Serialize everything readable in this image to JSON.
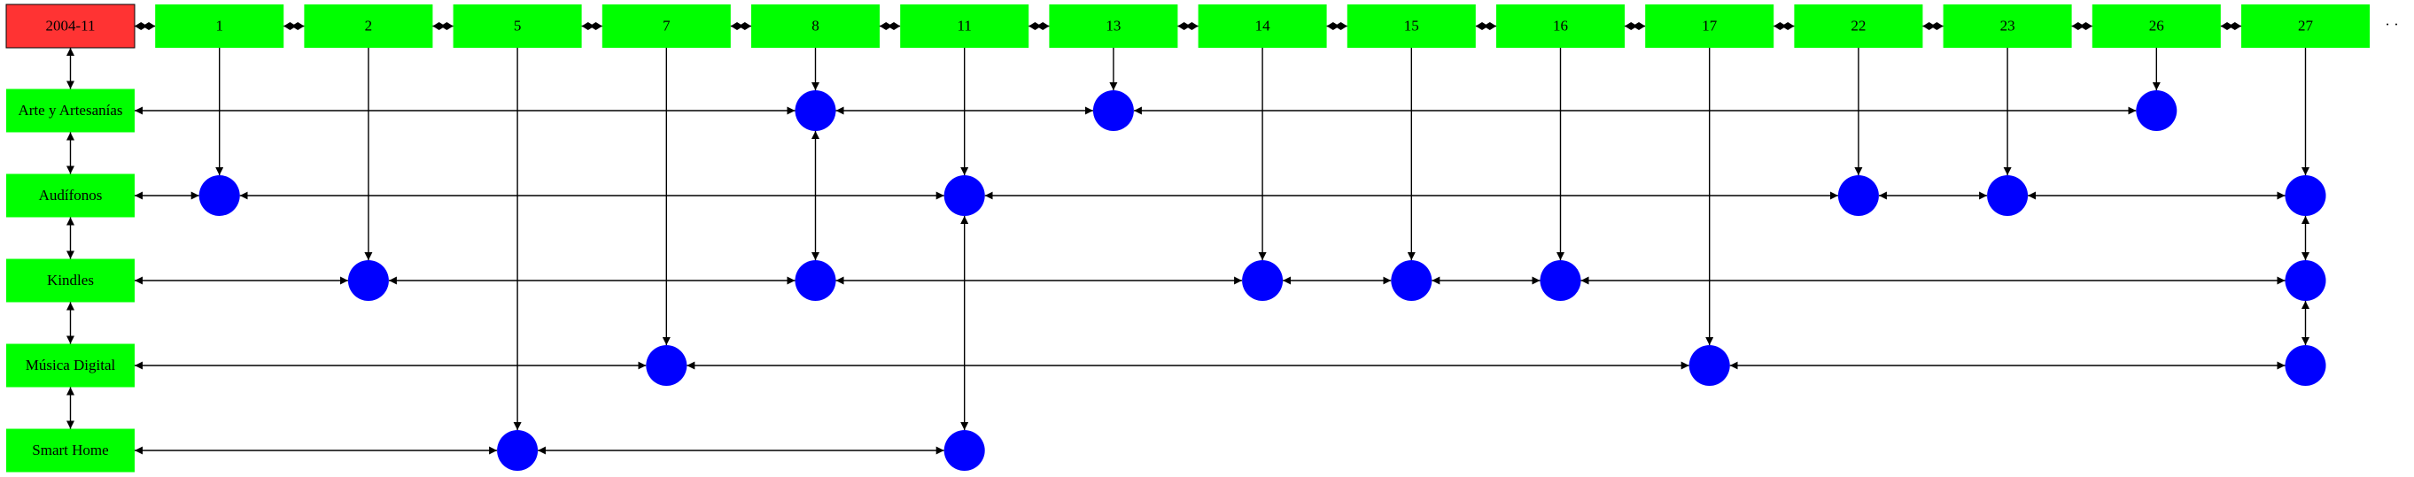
{
  "month_label": "2004-11",
  "days": [
    "1",
    "2",
    "5",
    "7",
    "8",
    "11",
    "13",
    "14",
    "15",
    "16",
    "17",
    "22",
    "23",
    "26",
    "27"
  ],
  "categories": [
    "Arte y Artesanías",
    "Audífonos",
    "Kindles",
    "Música Digital",
    "Smart Home"
  ],
  "events": {
    "Arte y Artesanías": [
      "8",
      "13",
      "26"
    ],
    "Audífonos": [
      "1",
      "11",
      "22",
      "23",
      "27"
    ],
    "Kindles": [
      "2",
      "8",
      "14",
      "15",
      "16",
      "27"
    ],
    "Música Digital": [
      "7",
      "17",
      "27"
    ],
    "Smart Home": [
      "5",
      "11"
    ]
  },
  "trailing_mark": "· ·",
  "colors": {
    "month_box": "#ff3333",
    "day_box": "#00ff00",
    "category_box": "#00ff00",
    "event_node": "#0000ff",
    "edge": "#000000"
  }
}
